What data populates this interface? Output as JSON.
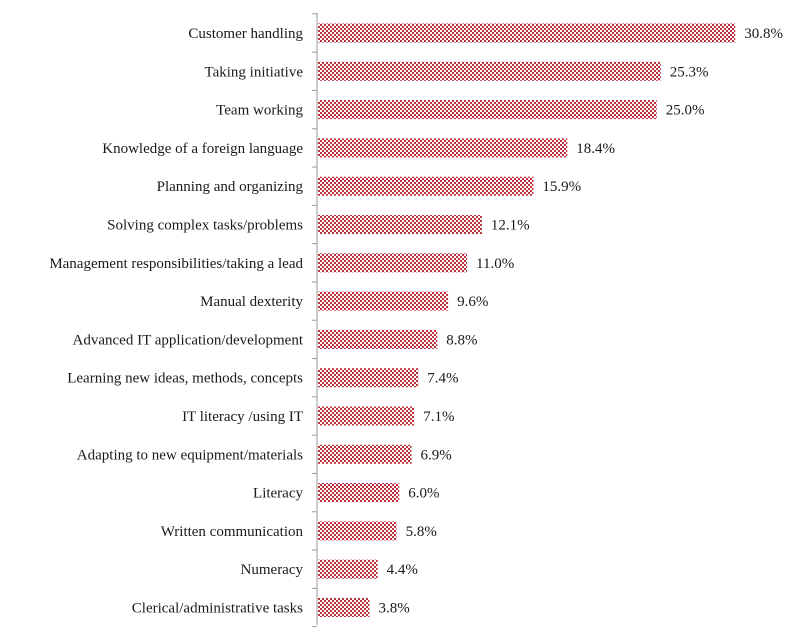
{
  "chart_data": {
    "type": "bar",
    "orientation": "horizontal",
    "categories": [
      "Customer handling",
      "Taking initiative",
      "Team working",
      "Knowledge of a foreign language",
      "Planning and organizing",
      "Solving complex tasks/problems",
      "Management responsibilities/taking a lead",
      "Manual dexterity",
      "Advanced IT application/development",
      "Learning new ideas, methods, concepts",
      "IT literacy /using IT",
      "Adapting to new equipment/materials",
      "Literacy",
      "Written communication",
      "Numeracy",
      "Clerical/administrative tasks"
    ],
    "values": [
      30.8,
      25.3,
      25.0,
      18.4,
      15.9,
      12.1,
      11.0,
      9.6,
      8.8,
      7.4,
      7.1,
      6.9,
      6.0,
      5.8,
      4.4,
      3.8
    ],
    "value_labels": [
      "30.8%",
      "25.3%",
      "25.0%",
      "18.4%",
      "15.9%",
      "12.1%",
      "11.0%",
      "9.6%",
      "8.8%",
      "7.4%",
      "7.1%",
      "6.9%",
      "6.0%",
      "5.8%",
      "4.4%",
      "3.8%"
    ],
    "title": "",
    "xlabel": "",
    "ylabel": "",
    "xlim": [
      0,
      31
    ],
    "grid": false,
    "legend": "none",
    "bar_pattern": "checkered",
    "colors": {
      "bar_fill": "#c0303a",
      "bar_pattern_light": "#ffffff",
      "axis": "#9a9a9a",
      "text": "#1a1a1a"
    }
  }
}
